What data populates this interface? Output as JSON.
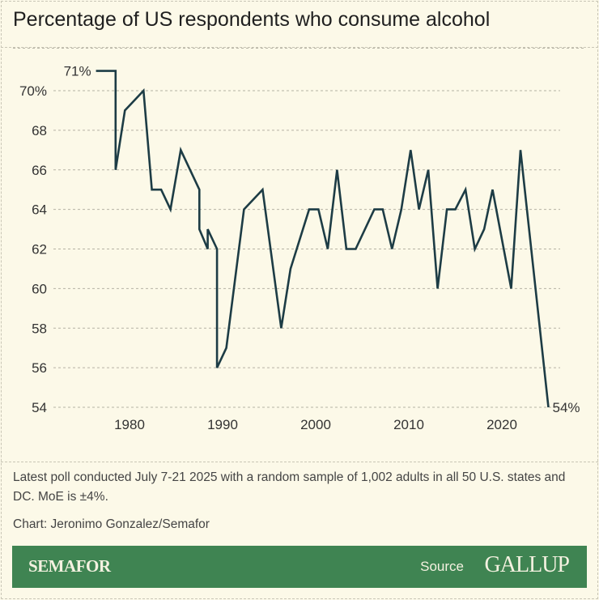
{
  "title": "Percentage of US respondents who consume alcohol",
  "chart_data": {
    "type": "line",
    "title": "Percentage of US respondents who consume alcohol",
    "xlabel": "",
    "ylabel": "",
    "xlim": [
      1975,
      2026
    ],
    "ylim": [
      54,
      71
    ],
    "grid": true,
    "x_ticks": [
      1980,
      1990,
      2000,
      2010,
      2020
    ],
    "y_ticks": [
      70,
      68,
      66,
      64,
      62,
      60,
      58,
      56,
      54
    ],
    "y_tick_labels": [
      "70%",
      "68",
      "66",
      "64",
      "62",
      "60",
      "58",
      "56",
      "54"
    ],
    "color": "#1d3c45",
    "annotations": {
      "start": "71%",
      "end": "54%"
    },
    "series": [
      {
        "x": [
          1976.4,
          1978.5,
          1978.5,
          1979.5,
          1981.5,
          1982.4,
          1983.4,
          1984.4,
          1985.5,
          1987.5,
          1987.5,
          1988.4,
          1988.4,
          1989.4,
          1989.4,
          1990.4,
          1992.3,
          1994.3,
          1996.3,
          1997.3,
          1999.3,
          2000.3,
          2001.3,
          2002.3,
          2003.3,
          2004.3,
          2006.3,
          2007.2,
          2008.2,
          2009.2,
          2010.2,
          2011.1,
          2012.1,
          2013.1,
          2014.1,
          2015.0,
          2016.1,
          2017.1,
          2018.1,
          2019.0,
          2021.0,
          2022.0,
          2025.0
        ],
        "y": [
          71,
          71,
          66,
          69,
          70,
          65,
          65,
          64,
          67,
          65,
          63,
          62,
          63,
          62,
          56,
          57,
          64,
          65,
          58,
          61,
          64,
          64,
          62,
          66,
          62,
          62,
          64,
          64,
          62,
          64,
          67,
          64,
          66,
          60,
          64,
          64,
          65,
          62,
          63,
          65,
          60,
          67,
          54
        ]
      }
    ]
  },
  "footer": {
    "note": "Latest poll conducted July 7-21 2025 with a random sample of 1,002 adults in all 50 U.S. states and DC. MoE is ±4%.",
    "credit": "Chart: Jeronimo Gonzalez/Semafor",
    "brand": "SEMAFOR",
    "source_label": "Source",
    "source_name": "GALLUP",
    "bar_color": "#3f8452"
  }
}
